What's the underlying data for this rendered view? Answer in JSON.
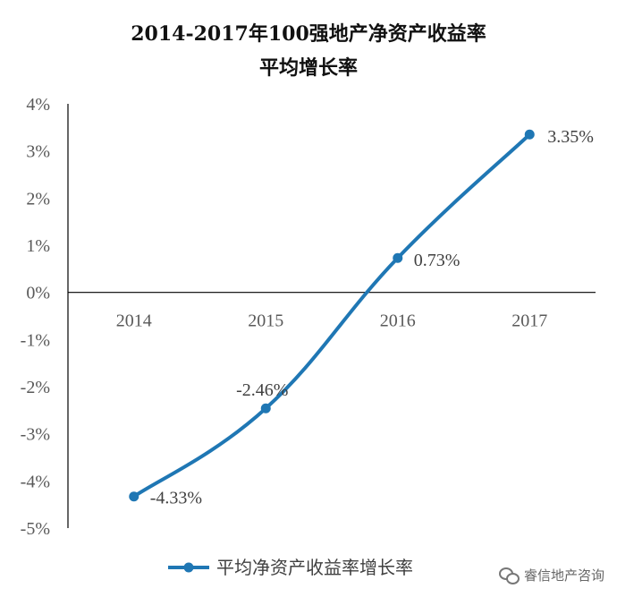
{
  "chart_data": {
    "type": "line",
    "title_line1": "2014-2017年100强地产净资产收益率",
    "title_line2": "平均增长率",
    "categories": [
      "2014",
      "2015",
      "2016",
      "2017"
    ],
    "series": [
      {
        "name": "平均净资产收益率增长率",
        "values": [
          -4.33,
          -2.46,
          0.73,
          3.35
        ],
        "labels": [
          "-4.33%",
          "-2.46%",
          "0.73%",
          "3.35%"
        ],
        "color": "#1f77b4"
      }
    ],
    "ylim": [
      -5,
      4
    ],
    "y_ticks": [
      "4%",
      "3%",
      "2%",
      "1%",
      "0%",
      "-1%",
      "-2%",
      "-3%",
      "-4%",
      "-5%"
    ],
    "grid": false,
    "legend_position": "bottom-center"
  },
  "watermark": {
    "text": "睿信地产咨询",
    "icon": "wechat-icon"
  }
}
